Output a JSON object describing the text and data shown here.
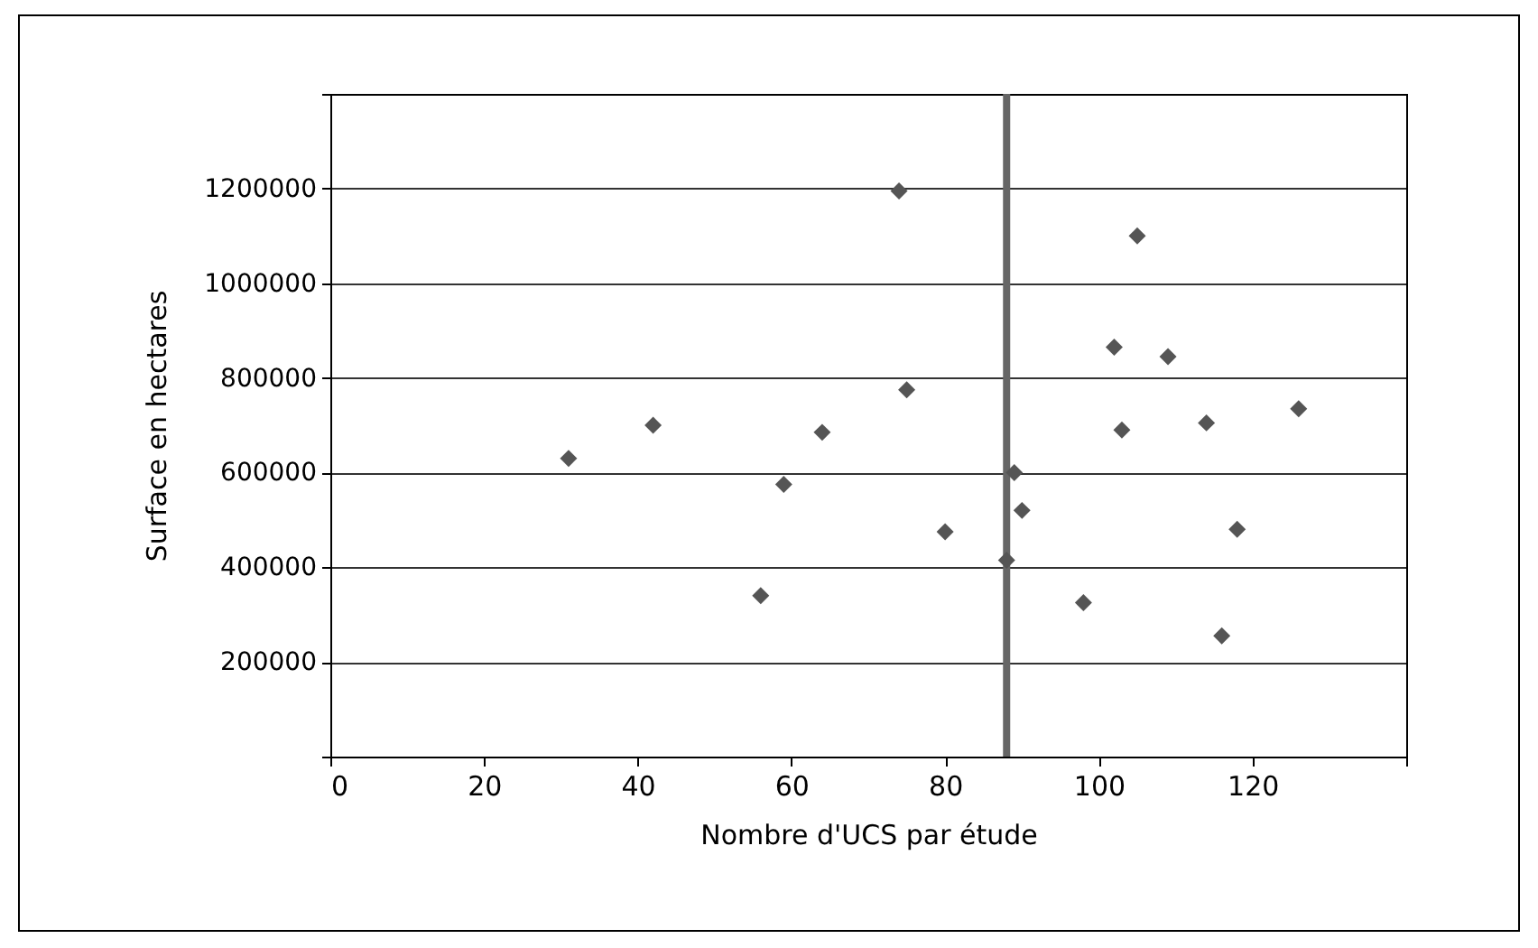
{
  "chart_data": {
    "type": "scatter",
    "xlabel": "Nombre d'UCS par étude",
    "ylabel": "Surface en hectares",
    "x": [
      31,
      42,
      56,
      59,
      64,
      74,
      75,
      80,
      88,
      89,
      90,
      98,
      102,
      103,
      105,
      109,
      114,
      116,
      118,
      126
    ],
    "series": [
      {
        "color": "#555555",
        "values": [
          630000,
          700000,
          340000,
          575000,
          685000,
          1195000,
          775000,
          475000,
          415000,
          600000,
          520000,
          325000,
          865000,
          690000,
          1100000,
          845000,
          705000,
          255000,
          480000,
          735000
        ]
      }
    ],
    "xlim": [
      0,
      140
    ],
    "xticks": [
      0,
      20,
      40,
      60,
      80,
      100,
      120,
      {
        "value": 140,
        "label": null
      }
    ],
    "ylim": [
      0,
      1400000
    ],
    "yticks": [
      {
        "value": 0,
        "label": null
      },
      200000,
      400000,
      600000,
      800000,
      1000000,
      1200000,
      {
        "value": 1400000,
        "label": null
      }
    ],
    "grid": "y",
    "marker": "diamond",
    "ref_lines": [
      {
        "axis": "x",
        "value": 88,
        "color": "#666666"
      }
    ]
  }
}
